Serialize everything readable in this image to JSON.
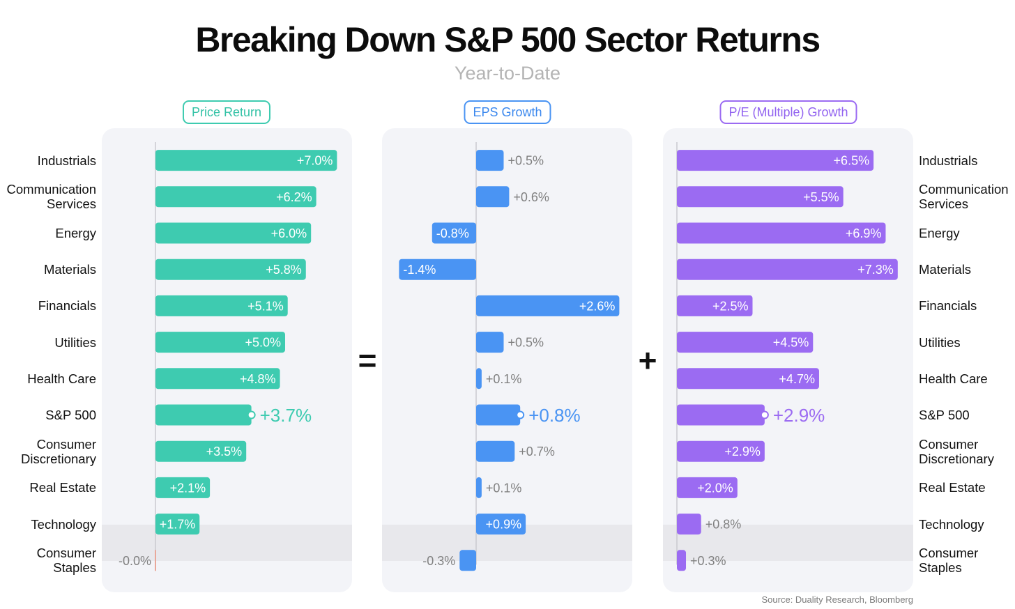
{
  "title": "Breaking Down S&P 500 Sector Returns",
  "subtitle": "Year-to-Date",
  "source": "Source: Duality Research, Bloomberg",
  "operators": {
    "equals": "=",
    "plus": "+"
  },
  "chart_data": {
    "type": "bar",
    "orientation": "horizontal",
    "categories": [
      "Industrials",
      "Communication Services",
      "Energy",
      "Materials",
      "Financials",
      "Utilities",
      "Health Care",
      "S&P 500",
      "Consumer Discretionary",
      "Real Estate",
      "Technology",
      "Consumer Staples"
    ],
    "highlight_category": "S&P 500",
    "series": [
      {
        "name": "Price Return",
        "color": "#3ecbb0",
        "values": [
          7.0,
          6.2,
          6.0,
          5.8,
          5.1,
          5.0,
          4.8,
          3.7,
          3.5,
          2.1,
          1.7,
          -0.0
        ],
        "labels": [
          "+7.0%",
          "+6.2%",
          "+6.0%",
          "+5.8%",
          "+5.1%",
          "+5.0%",
          "+4.8%",
          "+3.7%",
          "+3.5%",
          "+2.1%",
          "+1.7%",
          "-0.0%"
        ]
      },
      {
        "name": "EPS Growth",
        "color": "#4a94f3",
        "values": [
          0.5,
          0.6,
          -0.8,
          -1.4,
          2.6,
          0.5,
          0.1,
          0.8,
          0.7,
          0.1,
          0.9,
          -0.3
        ],
        "labels": [
          "+0.5%",
          "+0.6%",
          "-0.8%",
          "-1.4%",
          "+2.6%",
          "+0.5%",
          "+0.1%",
          "+0.8%",
          "+0.7%",
          "+0.1%",
          "+0.9%",
          "-0.3%"
        ]
      },
      {
        "name": "P/E (Multiple) Growth",
        "color": "#9b6bf2",
        "values": [
          6.5,
          5.5,
          6.9,
          7.3,
          2.5,
          4.5,
          4.7,
          2.9,
          2.9,
          2.0,
          0.8,
          0.3
        ],
        "labels": [
          "+6.5%",
          "+5.5%",
          "+6.9%",
          "+7.3%",
          "+2.5%",
          "+4.5%",
          "+4.7%",
          "+2.9%",
          "+2.9%",
          "+2.0%",
          "+0.8%",
          "+0.3%"
        ]
      }
    ]
  }
}
